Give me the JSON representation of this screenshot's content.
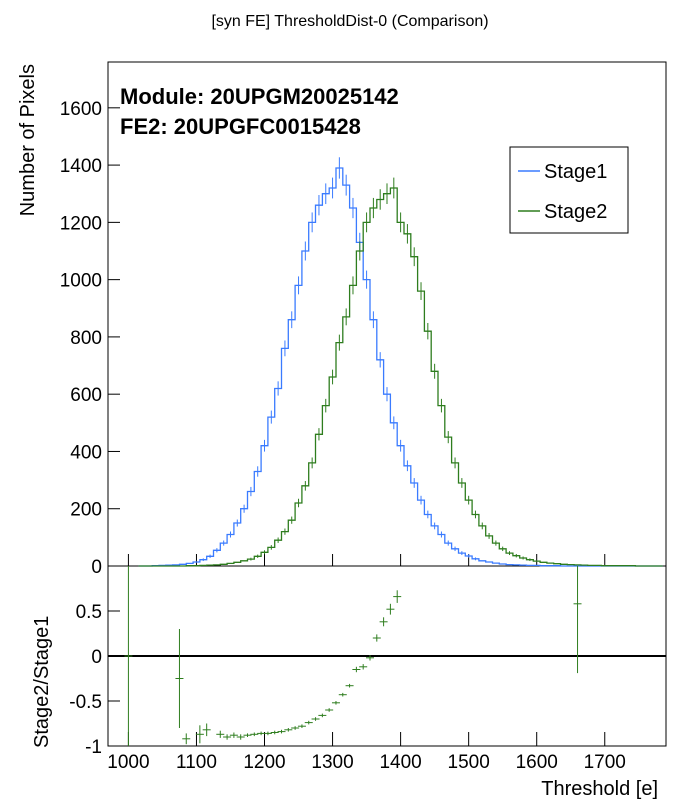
{
  "chart_data": [
    {
      "type": "histogram-step",
      "title": "[syn FE] ThresholdDist-0 (Comparison)",
      "ylabel": "Number of Pixels",
      "xlim": [
        970,
        1790
      ],
      "ylim": [
        0,
        1760
      ],
      "y_ticks": [
        0,
        200,
        400,
        600,
        800,
        1000,
        1200,
        1400,
        1600
      ],
      "x_ticks": [
        1000,
        1100,
        1200,
        1300,
        1400,
        1500,
        1600,
        1700
      ],
      "annotations": [
        "Module: 20UPGM20025142",
        "FE2: 20UPGFC0015428"
      ],
      "legend": {
        "placement": "top-right",
        "entries": [
          "Stage1",
          "Stage2"
        ]
      },
      "bin_width": 10,
      "series": [
        {
          "name": "Stage1",
          "color": "#3a7bff",
          "x": [
            1020,
            1030,
            1040,
            1050,
            1060,
            1070,
            1080,
            1090,
            1100,
            1110,
            1120,
            1130,
            1140,
            1150,
            1160,
            1170,
            1180,
            1190,
            1200,
            1210,
            1220,
            1230,
            1240,
            1250,
            1260,
            1270,
            1280,
            1290,
            1300,
            1310,
            1320,
            1330,
            1340,
            1350,
            1360,
            1370,
            1380,
            1390,
            1400,
            1410,
            1420,
            1430,
            1440,
            1450,
            1460,
            1470,
            1480,
            1490,
            1500,
            1510,
            1520,
            1530,
            1540,
            1550,
            1560,
            1570,
            1580,
            1590,
            1600,
            1610,
            1620,
            1630,
            1640,
            1650,
            1660,
            1670,
            1680,
            1690,
            1700,
            1710,
            1720,
            1730,
            1740,
            1750,
            1760,
            1770,
            1780
          ],
          "values": [
            0,
            0,
            1,
            2,
            3,
            4,
            6,
            9,
            14,
            22,
            34,
            55,
            80,
            110,
            150,
            200,
            260,
            330,
            420,
            520,
            620,
            760,
            860,
            980,
            1100,
            1200,
            1260,
            1300,
            1320,
            1390,
            1330,
            1250,
            1130,
            1000,
            860,
            720,
            600,
            500,
            420,
            350,
            290,
            230,
            180,
            140,
            110,
            80,
            60,
            45,
            35,
            25,
            18,
            14,
            10,
            7,
            5,
            4,
            3,
            2,
            2,
            1,
            1,
            1,
            0,
            0,
            0,
            0,
            0,
            0,
            0,
            0,
            0,
            0,
            0,
            0,
            0,
            0,
            0
          ]
        },
        {
          "name": "Stage2",
          "color": "#2e7d1e",
          "x": [
            1020,
            1030,
            1040,
            1050,
            1060,
            1070,
            1080,
            1090,
            1100,
            1110,
            1120,
            1130,
            1140,
            1150,
            1160,
            1170,
            1180,
            1190,
            1200,
            1210,
            1220,
            1230,
            1240,
            1250,
            1260,
            1270,
            1280,
            1290,
            1300,
            1310,
            1320,
            1330,
            1340,
            1350,
            1360,
            1370,
            1380,
            1390,
            1400,
            1410,
            1420,
            1430,
            1440,
            1450,
            1460,
            1470,
            1480,
            1490,
            1500,
            1510,
            1520,
            1530,
            1540,
            1550,
            1560,
            1570,
            1580,
            1590,
            1600,
            1610,
            1620,
            1630,
            1640,
            1650,
            1660,
            1670,
            1680,
            1690,
            1700,
            1710,
            1720,
            1730,
            1740,
            1750,
            1760,
            1770,
            1780
          ],
          "values": [
            0,
            0,
            0,
            0,
            0,
            0,
            0,
            1,
            1,
            2,
            3,
            4,
            6,
            9,
            13,
            18,
            24,
            34,
            48,
            65,
            90,
            120,
            160,
            220,
            280,
            360,
            460,
            560,
            660,
            780,
            870,
            980,
            1100,
            1200,
            1250,
            1280,
            1300,
            1320,
            1200,
            1160,
            1080,
            960,
            820,
            680,
            560,
            450,
            360,
            290,
            230,
            180,
            140,
            105,
            80,
            60,
            45,
            36,
            28,
            22,
            17,
            13,
            10,
            8,
            6,
            5,
            4,
            3,
            2,
            2,
            1,
            1,
            1,
            1,
            1,
            0,
            0,
            0,
            0
          ]
        }
      ]
    },
    {
      "type": "scatter-errorbar",
      "ylabel": "Stage2/Stage1",
      "xlabel": "Threshold [e]",
      "xlim": [
        970,
        1790
      ],
      "ylim": [
        -1,
        1
      ],
      "y_ticks": [
        -1,
        -0.5,
        0,
        0.5
      ],
      "x_ticks": [
        1000,
        1100,
        1200,
        1300,
        1400,
        1500,
        1600,
        1700
      ],
      "reference_line": 0,
      "points": [
        {
          "x": 1000,
          "y": 0,
          "err": 1.0
        },
        {
          "x": 1075,
          "y": -0.25,
          "err": 0.55
        },
        {
          "x": 1085,
          "y": -0.92,
          "err": 0.06
        },
        {
          "x": 1105,
          "y": -0.87,
          "err": 0.1
        },
        {
          "x": 1115,
          "y": -0.82,
          "err": 0.07
        },
        {
          "x": 1135,
          "y": -0.87,
          "err": 0.04
        },
        {
          "x": 1145,
          "y": -0.9,
          "err": 0.03
        },
        {
          "x": 1155,
          "y": -0.88,
          "err": 0.03
        },
        {
          "x": 1165,
          "y": -0.9,
          "err": 0.03
        },
        {
          "x": 1175,
          "y": -0.88,
          "err": 0.02
        },
        {
          "x": 1185,
          "y": -0.87,
          "err": 0.02
        },
        {
          "x": 1195,
          "y": -0.86,
          "err": 0.02
        },
        {
          "x": 1205,
          "y": -0.86,
          "err": 0.02
        },
        {
          "x": 1215,
          "y": -0.85,
          "err": 0.02
        },
        {
          "x": 1225,
          "y": -0.84,
          "err": 0.02
        },
        {
          "x": 1235,
          "y": -0.82,
          "err": 0.02
        },
        {
          "x": 1245,
          "y": -0.8,
          "err": 0.02
        },
        {
          "x": 1255,
          "y": -0.78,
          "err": 0.02
        },
        {
          "x": 1265,
          "y": -0.74,
          "err": 0.02
        },
        {
          "x": 1275,
          "y": -0.7,
          "err": 0.02
        },
        {
          "x": 1285,
          "y": -0.66,
          "err": 0.02
        },
        {
          "x": 1295,
          "y": -0.6,
          "err": 0.02
        },
        {
          "x": 1305,
          "y": -0.52,
          "err": 0.02
        },
        {
          "x": 1315,
          "y": -0.43,
          "err": 0.02
        },
        {
          "x": 1325,
          "y": -0.33,
          "err": 0.02
        },
        {
          "x": 1335,
          "y": -0.15,
          "err": 0.03
        },
        {
          "x": 1345,
          "y": -0.12,
          "err": 0.03
        },
        {
          "x": 1355,
          "y": -0.02,
          "err": 0.03
        },
        {
          "x": 1365,
          "y": 0.2,
          "err": 0.04
        },
        {
          "x": 1375,
          "y": 0.38,
          "err": 0.05
        },
        {
          "x": 1385,
          "y": 0.52,
          "err": 0.06
        },
        {
          "x": 1395,
          "y": 0.66,
          "err": 0.07
        },
        {
          "x": 1660,
          "y": 0.58,
          "err": 0.77
        }
      ]
    }
  ]
}
